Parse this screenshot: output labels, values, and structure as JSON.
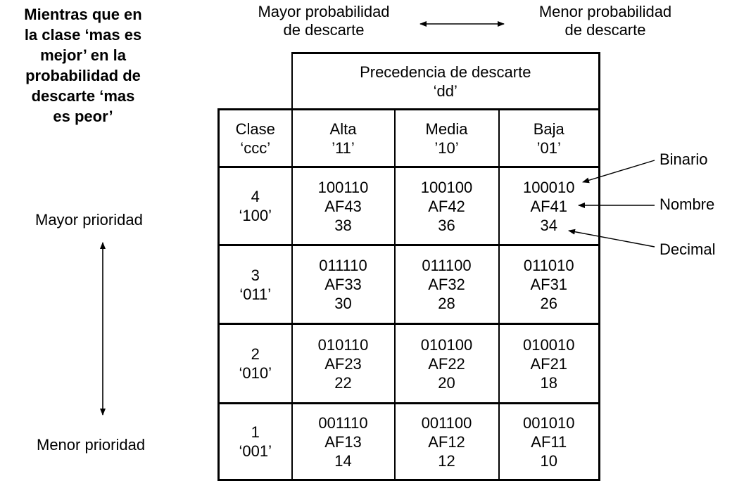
{
  "note": {
    "lines": [
      "Mientras que en",
      "la clase ‘mas es",
      "mejor’ en la",
      "probabilidad de",
      "descarte ‘mas",
      "es peor’"
    ]
  },
  "top": {
    "left_line1": "Mayor probabilidad",
    "left_line2": "de descarte",
    "right_line1": "Menor probabilidad",
    "right_line2": "de descarte"
  },
  "side": {
    "high": "Mayor prioridad",
    "low": "Menor prioridad"
  },
  "annotations": {
    "binario": "Binario",
    "nombre": "Nombre",
    "decimal": "Decimal"
  },
  "table": {
    "header_line1": "Precedencia de descarte",
    "header_line2": "‘dd’",
    "class_col": {
      "line1": "Clase",
      "line2": "‘ccc’"
    },
    "columns": [
      {
        "line1": "Alta",
        "line2": "’11’"
      },
      {
        "line1": "Media",
        "line2": "’10’"
      },
      {
        "line1": "Baja",
        "line2": "’01’"
      }
    ],
    "rows": [
      {
        "class": "4",
        "code": "‘100’",
        "cells": [
          {
            "bin": "100110",
            "name": "AF43",
            "dec": "38"
          },
          {
            "bin": "100100",
            "name": "AF42",
            "dec": "36"
          },
          {
            "bin": "100010",
            "name": "AF41",
            "dec": "34"
          }
        ]
      },
      {
        "class": "3",
        "code": "‘011’",
        "cells": [
          {
            "bin": "011110",
            "name": "AF33",
            "dec": "30"
          },
          {
            "bin": "011100",
            "name": "AF32",
            "dec": "28"
          },
          {
            "bin": "011010",
            "name": "AF31",
            "dec": "26"
          }
        ]
      },
      {
        "class": "2",
        "code": "‘010’",
        "cells": [
          {
            "bin": "010110",
            "name": "AF23",
            "dec": "22"
          },
          {
            "bin": "010100",
            "name": "AF22",
            "dec": "20"
          },
          {
            "bin": "010010",
            "name": "AF21",
            "dec": "18"
          }
        ]
      },
      {
        "class": "1",
        "code": "‘001’",
        "cells": [
          {
            "bin": "001110",
            "name": "AF13",
            "dec": "14"
          },
          {
            "bin": "001100",
            "name": "AF12",
            "dec": "12"
          },
          {
            "bin": "001010",
            "name": "AF11",
            "dec": "10"
          }
        ]
      }
    ]
  }
}
